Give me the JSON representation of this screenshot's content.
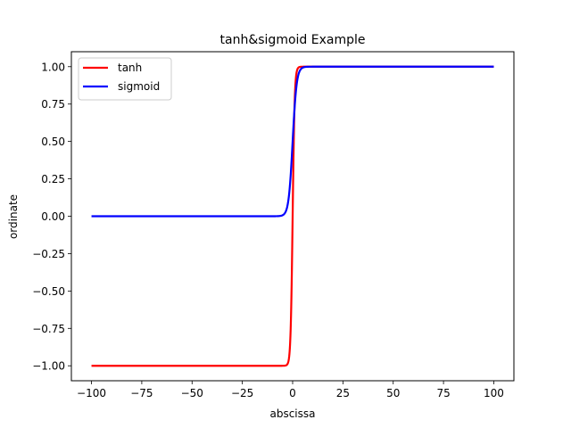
{
  "chart_data": {
    "type": "line",
    "title": "tanh&sigmoid Example",
    "xlabel": "abscissa",
    "ylabel": "ordinate",
    "xlim": [
      -110,
      110
    ],
    "ylim": [
      -1.1,
      1.1
    ],
    "xticks": [
      -100,
      -75,
      -50,
      -25,
      0,
      25,
      50,
      75,
      100
    ],
    "xtick_labels": [
      "−100",
      "−75",
      "−50",
      "−25",
      "0",
      "25",
      "50",
      "75",
      "100"
    ],
    "yticks": [
      -1.0,
      -0.75,
      -0.5,
      -0.25,
      0.0,
      0.25,
      0.5,
      0.75,
      1.0
    ],
    "ytick_labels": [
      "−1.00",
      "−0.75",
      "−0.50",
      "−0.25",
      "0.00",
      "0.25",
      "0.50",
      "0.75",
      "1.00"
    ],
    "grid": false,
    "legend_position": "upper left",
    "x_range": [
      -100,
      100
    ],
    "series": [
      {
        "name": "tanh",
        "function": "tanh(x)",
        "color": "#ff0000",
        "sample_points": {
          "x": [
            -100,
            -10,
            -5,
            -2,
            -1,
            0,
            1,
            2,
            5,
            10,
            100
          ],
          "y": [
            -1.0,
            -1.0,
            -0.9999,
            -0.964,
            -0.762,
            0.0,
            0.762,
            0.964,
            0.9999,
            1.0,
            1.0
          ]
        }
      },
      {
        "name": "sigmoid",
        "function": "1/(1+exp(-x))",
        "color": "#0000ff",
        "sample_points": {
          "x": [
            -100,
            -10,
            -5,
            -2,
            -1,
            0,
            1,
            2,
            5,
            10,
            100
          ],
          "y": [
            0.0,
            5e-05,
            0.0067,
            0.119,
            0.269,
            0.5,
            0.731,
            0.881,
            0.9933,
            0.99995,
            1.0
          ]
        }
      }
    ]
  }
}
